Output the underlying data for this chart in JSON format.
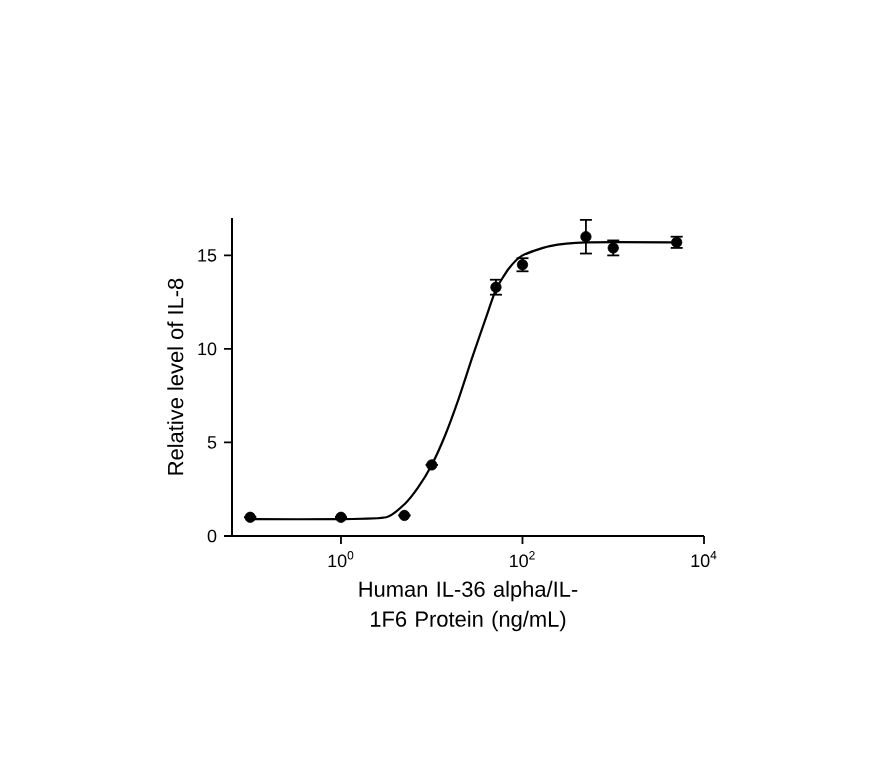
{
  "chart_data": {
    "type": "scatter",
    "xlabel": "Human IL-36 alpha/IL-1F6 Protein (ng/mL)",
    "ylabel": "Relative level of IL-8",
    "log": "x",
    "xlim": [
      0.063,
      10000
    ],
    "ylim": [
      0,
      17
    ],
    "xticks": [
      {
        "value": 1,
        "label": "10$^{0}$"
      },
      {
        "value": 100,
        "label": "10$^{2}$"
      },
      {
        "value": 10000,
        "label": "10$^{4}$"
      }
    ],
    "yticks": [
      0,
      5,
      10,
      15
    ],
    "grid": false,
    "series": [
      {
        "color": "#000000",
        "marker": "circle",
        "x": [
          0.1,
          1,
          5,
          10,
          51,
          100,
          500,
          1000,
          5000
        ],
        "values": [
          1.0,
          1.0,
          1.1,
          3.8,
          13.3,
          14.5,
          16.0,
          15.4,
          15.7
        ],
        "errors": [
          null,
          null,
          null,
          null,
          0.4,
          0.35,
          0.9,
          0.4,
          0.3
        ]
      },
      {
        "type": "line",
        "color": "#000000",
        "marker": "none",
        "line_style": "solid",
        "x": [
          0.1,
          1,
          3.16,
          5.01,
          7.08,
          10,
          14.1,
          20,
          28.2,
          39.8,
          51.3,
          70.8,
          100,
          200,
          501,
          5500
        ],
        "values": [
          0.9,
          0.9,
          1.0,
          1.7,
          2.6,
          3.8,
          5.4,
          7.4,
          9.6,
          11.7,
          13.2,
          14.3,
          15.0,
          15.5,
          15.7,
          15.7
        ]
      }
    ]
  }
}
